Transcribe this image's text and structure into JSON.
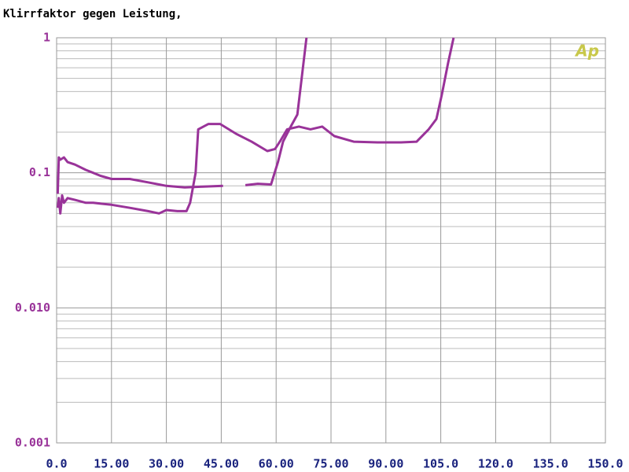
{
  "chart_data": {
    "type": "line",
    "title": "Klirrfaktor gegen Leistung,",
    "logo": "Ap",
    "log_y": true,
    "grid": true,
    "minor_grid": true,
    "xlim": [
      0,
      150
    ],
    "ylim": [
      0.001,
      1
    ],
    "xticks": [
      {
        "value": 0,
        "label": "0.0"
      },
      {
        "value": 15,
        "label": "15.00"
      },
      {
        "value": 30,
        "label": "30.00"
      },
      {
        "value": 45,
        "label": "45.00"
      },
      {
        "value": 60,
        "label": "60.00"
      },
      {
        "value": 75,
        "label": "75.00"
      },
      {
        "value": 90,
        "label": "90.00"
      },
      {
        "value": 105,
        "label": "105.0"
      },
      {
        "value": 120,
        "label": "120.0"
      },
      {
        "value": 135,
        "label": "135.0"
      },
      {
        "value": 150,
        "label": "150.0"
      }
    ],
    "yticks": [
      1,
      0.1,
      {
        "value": 0.01,
        "label": "0.010"
      },
      0.001
    ],
    "series": [
      {
        "color": "#993399",
        "x": [
          0.3,
          0.6,
          1,
          2,
          3,
          5,
          8,
          10,
          12,
          15,
          20,
          25,
          28,
          30,
          35,
          40,
          45.5,
          48,
          51.6,
          55,
          58.6,
          60.5,
          61.9,
          64,
          65.8,
          68.3
        ],
        "values": [
          0.07,
          0.13,
          0.125,
          0.13,
          0.12,
          0.115,
          0.105,
          0.1,
          0.095,
          0.09,
          0.09,
          0.085,
          0.082,
          0.08,
          0.078,
          0.079,
          0.08,
          null,
          0.081,
          0.083,
          0.082,
          0.12,
          0.17,
          0.22,
          0.27,
          1
        ]
      },
      {
        "color": "#993399",
        "x": [
          0.3,
          0.6,
          1,
          1.5,
          2,
          3,
          5,
          8,
          10,
          15,
          20,
          25,
          28,
          30,
          33,
          35.5,
          36.5,
          38,
          38.7,
          41.5,
          44.7,
          49,
          53.3,
          57.6,
          59.7,
          61,
          63,
          66.2,
          69.4,
          72.6,
          75.9,
          81.2,
          87.7,
          94.1,
          98.4,
          101.7,
          103.8,
          105.3,
          107,
          108.5
        ],
        "values": [
          0.055,
          0.065,
          0.05,
          0.068,
          0.06,
          0.065,
          0.063,
          0.06,
          0.06,
          0.058,
          0.055,
          0.052,
          0.05,
          0.053,
          0.052,
          0.052,
          0.06,
          0.1,
          0.21,
          0.23,
          0.23,
          0.195,
          0.17,
          0.145,
          0.15,
          0.17,
          0.21,
          0.22,
          0.21,
          0.22,
          0.187,
          0.17,
          0.168,
          0.168,
          0.17,
          0.21,
          0.25,
          0.38,
          0.65,
          1
        ]
      }
    ]
  }
}
